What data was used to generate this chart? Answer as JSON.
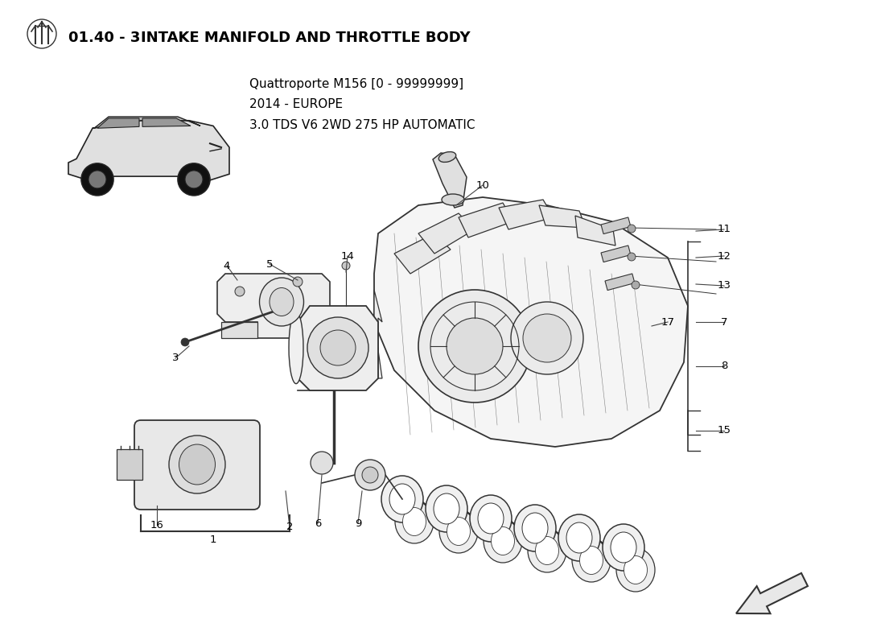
{
  "title_bold": "01.40 - 3",
  "title_rest": "INTAKE MANIFOLD AND THROTTLE BODY",
  "subtitle_line1": "Quattroporte M156 [0 - 99999999]",
  "subtitle_line2": "2014 - EUROPE",
  "subtitle_line3": "3.0 TDS V6 2WD 275 HP AUTOMATIC",
  "background_color": "#ffffff",
  "line_color": "#000000",
  "sketch_color": "#333333",
  "label_color": "#000000"
}
